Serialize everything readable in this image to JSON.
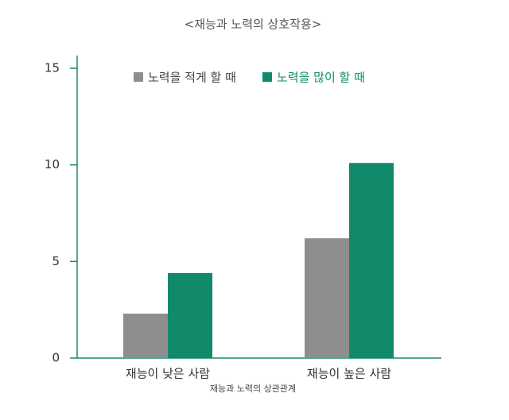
{
  "chart_data": {
    "type": "bar",
    "title": "<재능과 노력의 상호작용>",
    "caption": "재능과 노력의 상관관계",
    "categories": [
      "재능이 낮은 사람",
      "재능이 높은 사람"
    ],
    "series": [
      {
        "name": "노력을 적게 할 때",
        "color": "#8e8e8e",
        "values": [
          2.3,
          6.2
        ]
      },
      {
        "name": "노력을 많이 할 때",
        "color": "#118a6c",
        "values": [
          4.4,
          10.1
        ]
      }
    ],
    "ylim": [
      0,
      15
    ],
    "yticks": [
      0,
      5,
      10,
      15
    ],
    "legend": "top"
  }
}
